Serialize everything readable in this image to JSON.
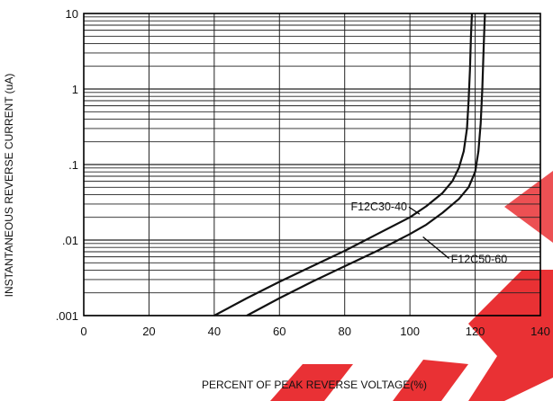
{
  "chart_data": {
    "type": "line",
    "title": "",
    "xlabel": "PERCENT OF PEAK REVERSE VOLTAGE(%)",
    "ylabel": "INSTANTANEOUS REVERSE CURRENT (uA)",
    "xlim": [
      0,
      140
    ],
    "ylim": [
      0.001,
      10
    ],
    "yscale": "log",
    "grid": "log-minor horizontal, major vertical every 20",
    "x_ticks": [
      "0",
      "20",
      "40",
      "60",
      "80",
      "100",
      "120",
      "140"
    ],
    "y_ticks": [
      ".001",
      ".01",
      ".1",
      "1",
      "10"
    ],
    "x_tick_values": [
      0,
      20,
      40,
      60,
      80,
      100,
      120,
      140
    ],
    "y_tick_values": [
      0.001,
      0.01,
      0.1,
      1,
      10
    ],
    "series": [
      {
        "name": "F12C30-40",
        "x": [
          40,
          50,
          60,
          70,
          80,
          90,
          100,
          105,
          110,
          113,
          115,
          116.5,
          117.5,
          118,
          118.4,
          118.7,
          119
        ],
        "y": [
          0.001,
          0.0017,
          0.0028,
          0.0045,
          0.0072,
          0.012,
          0.02,
          0.028,
          0.042,
          0.06,
          0.09,
          0.15,
          0.3,
          0.7,
          1.8,
          5,
          10
        ]
      },
      {
        "name": "F12C50-60",
        "x": [
          50,
          60,
          70,
          80,
          90,
          100,
          105,
          110,
          115,
          118,
          120,
          121,
          121.7,
          122.2,
          122.6,
          123
        ],
        "y": [
          0.001,
          0.0017,
          0.0028,
          0.0045,
          0.0072,
          0.012,
          0.016,
          0.023,
          0.035,
          0.05,
          0.08,
          0.15,
          0.35,
          1,
          3.5,
          10
        ]
      }
    ],
    "annotations": [
      {
        "text": "F12C30-40",
        "x": 103,
        "y": 0.022
      },
      {
        "text": "F12C50-60",
        "x": 104,
        "y": 0.011
      }
    ]
  },
  "colors": {
    "line": "#111111",
    "grid": "#222222",
    "watermark": "#e8262a"
  }
}
